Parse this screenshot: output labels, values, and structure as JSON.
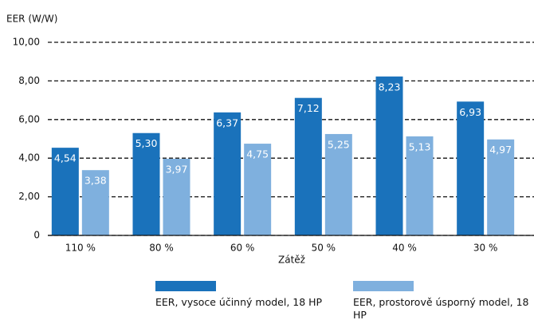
{
  "chart_data": {
    "type": "bar",
    "y_label": "EER (W/W)",
    "x_label": "Zátěž",
    "categories": [
      "110 %",
      "80 %",
      "60 %",
      "50 %",
      "40 %",
      "30 %"
    ],
    "series": [
      {
        "name": "EER, vysoce účinný model, 18 HP",
        "color": "#1a72bb",
        "values": [
          4.54,
          5.3,
          6.37,
          7.12,
          8.23,
          6.93
        ],
        "value_labels": [
          "4,54",
          "5,30",
          "6,37",
          "7,12",
          "8,23",
          "6,93"
        ]
      },
      {
        "name": "EER, prostorově úsporný model, 18 HP",
        "color": "#7fb0de",
        "values": [
          3.38,
          3.97,
          4.75,
          5.25,
          5.13,
          4.97
        ],
        "value_labels": [
          "3,38",
          "3,97",
          "4,75",
          "5,25",
          "5,13",
          "4,97"
        ]
      }
    ],
    "ylim": [
      0,
      10
    ],
    "yticks": [
      0,
      {
        "value": 2,
        "label": "2,00"
      },
      {
        "value": 4,
        "label": "4,00"
      },
      {
        "value": 6,
        "label": "6,00"
      },
      {
        "value": 8,
        "label": "8,00"
      },
      {
        "value": 10,
        "label": "10,00"
      }
    ],
    "grid": true
  }
}
